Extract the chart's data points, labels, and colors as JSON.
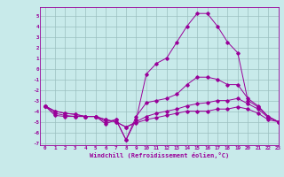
{
  "xlabel": "Windchill (Refroidissement éolien,°C)",
  "ylabel": "",
  "bg_color": "#c8eaea",
  "line_color": "#990099",
  "grid_color": "#9bbfbf",
  "xlim": [
    -0.5,
    23
  ],
  "ylim": [
    -7.2,
    5.8
  ],
  "yticks": [
    5,
    4,
    3,
    2,
    1,
    0,
    -1,
    -2,
    -3,
    -4,
    -5,
    -6,
    -7
  ],
  "xticks": [
    0,
    1,
    2,
    3,
    4,
    5,
    6,
    7,
    8,
    9,
    10,
    11,
    12,
    13,
    14,
    15,
    16,
    17,
    18,
    19,
    20,
    21,
    22,
    23
  ],
  "series1_x": [
    0,
    1,
    2,
    3,
    4,
    5,
    6,
    7,
    8,
    9,
    10,
    11,
    12,
    13,
    14,
    15,
    16,
    17,
    18,
    19,
    20,
    21,
    22,
    23
  ],
  "series1_y": [
    -3.5,
    -4.4,
    -4.5,
    -4.5,
    -4.5,
    -4.5,
    -5.2,
    -4.8,
    -6.7,
    -4.8,
    -0.5,
    0.5,
    1.0,
    2.5,
    4.0,
    5.2,
    5.2,
    4.0,
    2.5,
    1.5,
    -3.0,
    -3.6,
    -4.5,
    -5.0
  ],
  "series2_x": [
    0,
    1,
    2,
    3,
    4,
    5,
    6,
    7,
    8,
    9,
    10,
    11,
    12,
    13,
    14,
    15,
    16,
    17,
    18,
    19,
    20,
    21,
    22,
    23
  ],
  "series2_y": [
    -3.5,
    -4.2,
    -4.4,
    -4.5,
    -4.5,
    -4.5,
    -5.0,
    -4.8,
    -6.7,
    -4.5,
    -3.2,
    -3.0,
    -2.8,
    -2.4,
    -1.5,
    -0.8,
    -0.8,
    -1.0,
    -1.5,
    -1.5,
    -2.8,
    -3.5,
    -4.5,
    -5.0
  ],
  "series3_x": [
    0,
    1,
    2,
    3,
    4,
    5,
    6,
    7,
    8,
    9,
    10,
    11,
    12,
    13,
    14,
    15,
    16,
    17,
    18,
    19,
    20,
    21,
    22,
    23
  ],
  "series3_y": [
    -3.5,
    -4.0,
    -4.2,
    -4.3,
    -4.5,
    -4.5,
    -4.8,
    -5.0,
    -5.5,
    -5.0,
    -4.5,
    -4.2,
    -4.0,
    -3.8,
    -3.5,
    -3.3,
    -3.2,
    -3.0,
    -3.0,
    -2.8,
    -3.3,
    -3.8,
    -4.6,
    -5.0
  ],
  "series4_x": [
    0,
    1,
    2,
    3,
    4,
    5,
    6,
    7,
    8,
    9,
    10,
    11,
    12,
    13,
    14,
    15,
    16,
    17,
    18,
    19,
    20,
    21,
    22,
    23
  ],
  "series4_y": [
    -3.5,
    -4.0,
    -4.2,
    -4.3,
    -4.5,
    -4.5,
    -4.8,
    -5.0,
    -5.5,
    -5.1,
    -4.8,
    -4.6,
    -4.4,
    -4.2,
    -4.0,
    -4.0,
    -4.0,
    -3.8,
    -3.8,
    -3.6,
    -3.8,
    -4.2,
    -4.8,
    -5.0
  ]
}
